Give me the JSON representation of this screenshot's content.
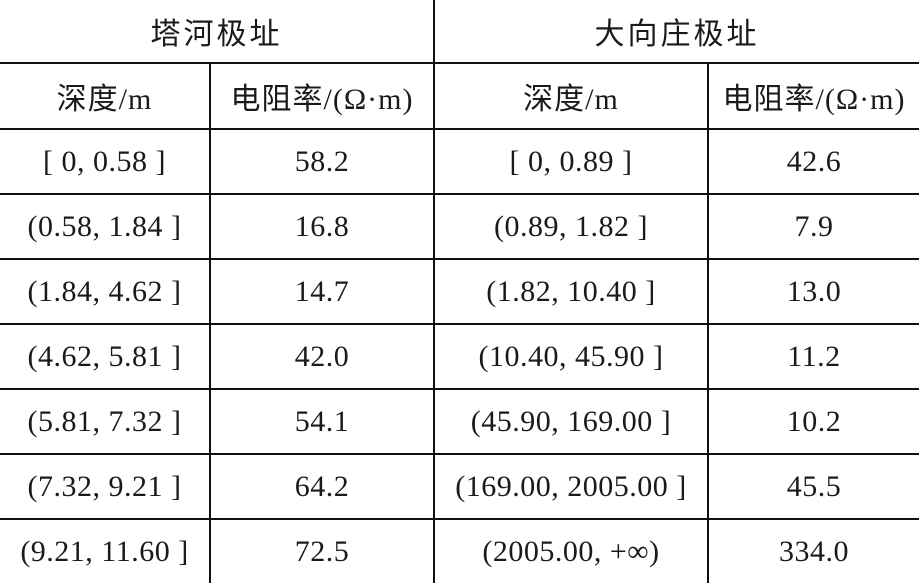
{
  "table": {
    "sites": [
      "塔河极址",
      "大向庄极址"
    ],
    "column_headers": [
      "深度/m",
      "电阻率/(Ω·m)",
      "深度/m",
      "电阻率/(Ω·m)"
    ],
    "rows": [
      [
        "[ 0, 0.58 ]",
        "58.2",
        "[ 0, 0.89 ]",
        "42.6"
      ],
      [
        "(0.58, 1.84 ]",
        "16.8",
        "(0.89, 1.82 ]",
        "7.9"
      ],
      [
        "(1.84, 4.62 ]",
        "14.7",
        "(1.82, 10.40 ]",
        "13.0"
      ],
      [
        "(4.62, 5.81 ]",
        "42.0",
        "(10.40, 45.90 ]",
        "11.2"
      ],
      [
        "(5.81, 7.32 ]",
        "54.1",
        "(45.90, 169.00 ]",
        "10.2"
      ],
      [
        "(7.32, 9.21 ]",
        "64.2",
        "(169.00, 2005.00 ]",
        "45.5"
      ],
      [
        "(9.21, 11.60 ]",
        "72.5",
        "(2005.00, +∞)",
        "334.0"
      ]
    ]
  }
}
